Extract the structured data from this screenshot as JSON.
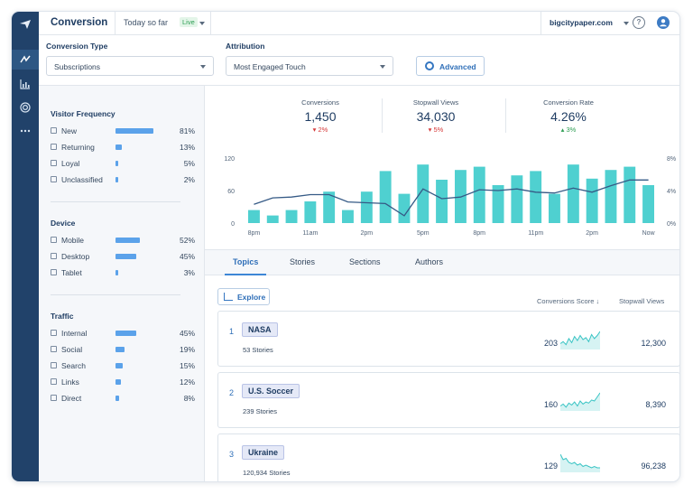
{
  "header": {
    "title": "Conversion",
    "range_label": "Today so far",
    "live_badge": "Live",
    "domain": "bigcitypaper.com",
    "help_glyph": "?"
  },
  "nav": [
    "lightning-icon",
    "analytics-icon",
    "target-icon",
    "more-icon"
  ],
  "controls": {
    "conversion_type_label": "Conversion Type",
    "conversion_type_value": "Subscriptions",
    "attribution_label": "Attribution",
    "attribution_value": "Most Engaged Touch",
    "advanced_label": "Advanced"
  },
  "sidebar": {
    "sections": [
      {
        "title": "Visitor Frequency",
        "items": [
          {
            "label": "New",
            "pct": "81%",
            "value": 81
          },
          {
            "label": "Returning",
            "pct": "13%",
            "value": 13
          },
          {
            "label": "Loyal",
            "pct": "5%",
            "value": 5
          },
          {
            "label": "Unclassified",
            "pct": "2%",
            "value": 2
          }
        ]
      },
      {
        "title": "Device",
        "items": [
          {
            "label": "Mobile",
            "pct": "52%",
            "value": 52
          },
          {
            "label": "Desktop",
            "pct": "45%",
            "value": 45
          },
          {
            "label": "Tablet",
            "pct": "3%",
            "value": 3
          }
        ]
      },
      {
        "title": "Traffic",
        "items": [
          {
            "label": "Internal",
            "pct": "45%",
            "value": 45
          },
          {
            "label": "Social",
            "pct": "19%",
            "value": 19
          },
          {
            "label": "Search",
            "pct": "15%",
            "value": 15
          },
          {
            "label": "Links",
            "pct": "12%",
            "value": 12
          },
          {
            "label": "Direct",
            "pct": "8%",
            "value": 8
          }
        ]
      }
    ]
  },
  "kpis": [
    {
      "label": "Conversions",
      "value": "1,450",
      "delta": "2%",
      "direction": "down"
    },
    {
      "label": "Stopwall Views",
      "value": "34,030",
      "delta": "5%",
      "direction": "down"
    },
    {
      "label": "Conversion Rate",
      "value": "4.26%",
      "delta": "3%",
      "direction": "up"
    }
  ],
  "chart_data": {
    "type": "bar",
    "x_tick_labels": [
      "8pm",
      "11am",
      "2pm",
      "5pm",
      "8pm",
      "11pm",
      "2pm",
      "Now"
    ],
    "left_axis_ticks": [
      "0",
      "60",
      "120"
    ],
    "right_axis_ticks": [
      "0%",
      "4%",
      "8%"
    ],
    "ylim_left": [
      0,
      120
    ],
    "ylim_right": [
      0,
      8
    ],
    "grid": false,
    "series": [
      {
        "values": [
          24,
          14,
          24,
          40,
          58,
          24,
          58,
          96,
          54,
          108,
          80,
          98,
          104,
          70,
          88,
          96,
          54,
          108,
          82,
          98,
          104,
          70
        ]
      },
      {
        "values": [
          2.3,
          3.1,
          3.2,
          3.5,
          3.5,
          2.6,
          2.5,
          2.4,
          0.9,
          4.2,
          3.0,
          3.2,
          4.1,
          4.0,
          4.2,
          3.8,
          3.7,
          4.3,
          3.8,
          4.6,
          5.3,
          5.3
        ]
      }
    ],
    "colors": {
      "bars": "#4fd0d0",
      "line": "#355a86"
    }
  },
  "tabs": [
    "Topics",
    "Stories",
    "Sections",
    "Authors"
  ],
  "table": {
    "explore_label": "Explore",
    "col_score": "Conversions Score ↓",
    "col_views": "Stopwall Views",
    "rows": [
      {
        "rank": "1",
        "topic": "NASA",
        "stories": "53 Stories",
        "score": "203",
        "views": "12,300",
        "spark": [
          4,
          6,
          3,
          9,
          5,
          11,
          7,
          12,
          8,
          10,
          6,
          13,
          9,
          12,
          16
        ]
      },
      {
        "rank": "2",
        "topic": "U.S. Soccer",
        "stories": "239 Stories",
        "score": "160",
        "views": "8,390",
        "spark": [
          3,
          5,
          2,
          6,
          4,
          7,
          3,
          8,
          5,
          7,
          6,
          9,
          8,
          12,
          16
        ]
      },
      {
        "rank": "3",
        "topic": "Ukraine",
        "stories": "120,934 Stories",
        "score": "129",
        "views": "96,238",
        "spark": [
          12,
          8,
          9,
          6,
          5,
          6,
          4,
          5,
          3,
          4,
          3,
          2,
          3,
          2,
          2
        ]
      }
    ]
  }
}
